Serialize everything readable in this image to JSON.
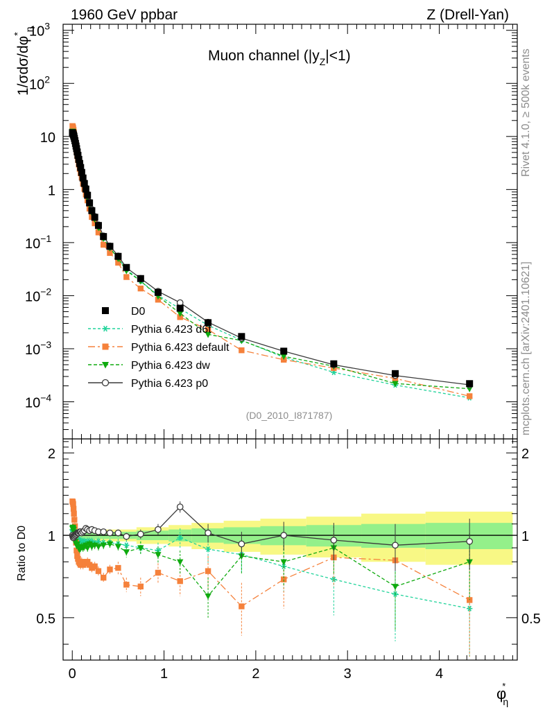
{
  "header": {
    "left": "1960 GeV ppbar",
    "right": "Z (Drell-Yan)"
  },
  "side": {
    "rivet": "Rivet 4.1.0, ≥ 500k events",
    "mcplots": "mcplots.cern.ch [arXiv:2401.10621]"
  },
  "chart_data": {
    "type": "scatter",
    "title": "Muon channel (|y_Z|<1)",
    "title_main": "Muon channel (|y",
    "title_sub": "Z",
    "title_tail": "|<1)",
    "analysis_id": "(D0_2010_I871787)",
    "xlabel": "φ*",
    "xlabel_main": "φ",
    "xlabel_sup": "*",
    "xlabel_sub": "η",
    "ylabel": "1/σdσ/dφ*η",
    "ylabel_main": "1/σdσ/dφ",
    "ylabel_sup": "*",
    "ylabel_sub": "η",
    "ratio_ylabel": "Ratio to D0",
    "xlim": [
      -0.1,
      4.85
    ],
    "ylim": [
      2e-05,
      1300
    ],
    "yscale": "log",
    "ratio_ylim": [
      0.35,
      2.25
    ],
    "xticks": [
      0,
      1,
      2,
      3,
      4
    ],
    "xtick_labels": [
      "0",
      "1",
      "2",
      "3",
      "4"
    ],
    "yticks": [
      0.0001,
      0.001,
      0.01,
      0.1,
      1,
      10,
      100,
      1000
    ],
    "ytick_labels": [
      {
        "t": "10",
        "e": "−4"
      },
      {
        "t": "10",
        "e": "−3"
      },
      {
        "t": "10",
        "e": "−2"
      },
      {
        "t": "10",
        "e": "−1"
      },
      {
        "t": "1",
        "e": ""
      },
      {
        "t": "10",
        "e": ""
      },
      {
        "t": "10",
        "e": "2"
      },
      {
        "t": "10",
        "e": "3"
      }
    ],
    "ratio_yticks": [
      0.5,
      1,
      2
    ],
    "ratio_ytick_labels": [
      "0.5",
      "1",
      "2"
    ],
    "x": [
      0.002,
      0.006,
      0.01,
      0.014,
      0.018,
      0.023,
      0.029,
      0.035,
      0.041,
      0.047,
      0.054,
      0.062,
      0.071,
      0.081,
      0.091,
      0.103,
      0.117,
      0.132,
      0.148,
      0.166,
      0.188,
      0.213,
      0.245,
      0.285,
      0.34,
      0.41,
      0.5,
      0.59,
      0.745,
      0.935,
      1.175,
      1.48,
      1.845,
      2.305,
      2.85,
      3.52,
      4.33
    ],
    "data": {
      "name": "D0",
      "values": [
        11.8,
        11.6,
        11.1,
        10.6,
        10.0,
        9.2,
        8.3,
        7.4,
        6.6,
        5.9,
        5.1,
        4.4,
        3.7,
        3.1,
        2.6,
        2.1,
        1.65,
        1.3,
        1.02,
        0.78,
        0.56,
        0.4,
        0.3,
        0.21,
        0.13,
        0.085,
        0.055,
        0.034,
        0.021,
        0.0115,
        0.0058,
        0.0031,
        0.0017,
        0.0009,
        0.00052,
        0.00034,
        0.00022
      ],
      "error": 0.03
    },
    "series": [
      {
        "name": "Pythia 6.423 d6t",
        "color": "#1fd39a",
        "marker": "star",
        "dash": "4,3",
        "ratio": [
          1.05,
          1.04,
          1.03,
          1.02,
          1.01,
          1.0,
          0.99,
          0.98,
          0.98,
          0.97,
          0.97,
          0.96,
          0.96,
          0.96,
          0.95,
          0.95,
          0.95,
          0.95,
          0.94,
          0.95,
          0.95,
          0.95,
          0.94,
          0.95,
          0.94,
          0.94,
          0.93,
          0.92,
          0.9,
          0.88,
          0.98,
          0.89,
          0.85,
          0.77,
          0.69,
          0.61,
          0.54
        ],
        "err": [
          0.03,
          0.03,
          0.03,
          0.03,
          0.03,
          0.03,
          0.03,
          0.03,
          0.03,
          0.03,
          0.03,
          0.03,
          0.03,
          0.03,
          0.03,
          0.03,
          0.03,
          0.03,
          0.03,
          0.03,
          0.03,
          0.03,
          0.03,
          0.03,
          0.03,
          0.03,
          0.04,
          0.04,
          0.05,
          0.06,
          0.08,
          0.1,
          0.12,
          0.15,
          0.18,
          0.2,
          0.22
        ]
      },
      {
        "name": "Pythia 6.423 default",
        "color": "#f5813b",
        "marker": "square",
        "dash": "10,4,3,4",
        "ratio": [
          1.33,
          1.32,
          1.3,
          1.25,
          1.2,
          1.14,
          1.08,
          1.0,
          0.94,
          0.88,
          0.84,
          0.82,
          0.8,
          0.79,
          0.78,
          0.8,
          0.78,
          0.79,
          0.79,
          0.8,
          0.78,
          0.76,
          0.77,
          0.74,
          0.7,
          0.75,
          0.76,
          0.66,
          0.65,
          0.73,
          0.68,
          0.74,
          0.55,
          0.69,
          0.83,
          0.81,
          0.58
        ],
        "err": [
          0.03,
          0.03,
          0.03,
          0.03,
          0.03,
          0.03,
          0.03,
          0.03,
          0.03,
          0.03,
          0.03,
          0.03,
          0.03,
          0.03,
          0.03,
          0.03,
          0.03,
          0.03,
          0.03,
          0.03,
          0.03,
          0.03,
          0.03,
          0.03,
          0.03,
          0.03,
          0.04,
          0.04,
          0.05,
          0.06,
          0.08,
          0.1,
          0.12,
          0.15,
          0.18,
          0.2,
          0.22
        ]
      },
      {
        "name": "Pythia 6.423 dw",
        "color": "#0faa0f",
        "marker": "tri-down",
        "dash": "5,3",
        "ratio": [
          1.06,
          1.07,
          1.06,
          1.05,
          1.03,
          1.0,
          0.98,
          0.95,
          0.93,
          0.92,
          0.93,
          0.91,
          0.9,
          0.89,
          0.9,
          0.91,
          0.9,
          0.91,
          0.92,
          0.9,
          0.93,
          0.91,
          0.92,
          0.91,
          0.92,
          0.93,
          0.91,
          0.87,
          0.9,
          0.85,
          0.8,
          0.6,
          0.84,
          0.8,
          0.9,
          0.65,
          0.8
        ],
        "err": [
          0.03,
          0.03,
          0.03,
          0.03,
          0.03,
          0.03,
          0.03,
          0.03,
          0.03,
          0.03,
          0.03,
          0.03,
          0.03,
          0.03,
          0.03,
          0.03,
          0.03,
          0.03,
          0.03,
          0.03,
          0.03,
          0.03,
          0.03,
          0.03,
          0.03,
          0.03,
          0.04,
          0.04,
          0.05,
          0.06,
          0.08,
          0.1,
          0.12,
          0.15,
          0.18,
          0.2,
          0.22
        ]
      },
      {
        "name": "Pythia 6.423 p0",
        "color": "#3a3a3a",
        "marker": "circle-open",
        "dash": "",
        "ratio": [
          1.0,
          0.99,
          0.98,
          0.98,
          0.99,
          0.99,
          1.0,
          1.0,
          1.01,
          1.01,
          1.02,
          1.02,
          1.02,
          1.03,
          1.03,
          1.02,
          1.03,
          1.04,
          1.06,
          1.05,
          1.04,
          1.05,
          1.04,
          1.03,
          1.03,
          1.02,
          1.02,
          0.99,
          1.01,
          1.05,
          1.27,
          1.02,
          0.93,
          1.0,
          0.96,
          0.92,
          0.95
        ],
        "err": [
          0.02,
          0.02,
          0.02,
          0.02,
          0.02,
          0.02,
          0.02,
          0.02,
          0.02,
          0.02,
          0.02,
          0.02,
          0.02,
          0.02,
          0.02,
          0.02,
          0.02,
          0.02,
          0.02,
          0.02,
          0.02,
          0.02,
          0.02,
          0.02,
          0.02,
          0.02,
          0.03,
          0.03,
          0.04,
          0.05,
          0.06,
          0.08,
          0.1,
          0.12,
          0.15,
          0.18,
          0.2
        ]
      }
    ],
    "uncertainty_bands": {
      "edges": [
        0,
        0.3,
        0.7,
        1.05,
        1.3,
        1.65,
        2.05,
        2.55,
        3.15,
        3.85,
        4.8
      ],
      "inner": [
        0.03,
        0.03,
        0.04,
        0.05,
        0.06,
        0.07,
        0.08,
        0.09,
        0.1,
        0.11,
        0.12
      ],
      "outer": [
        0.05,
        0.05,
        0.07,
        0.09,
        0.11,
        0.13,
        0.15,
        0.17,
        0.2,
        0.22,
        0.24
      ]
    },
    "colors": {
      "band_inner": "#94f08a",
      "band_outer": "#f8f885",
      "data": "#000000",
      "gray": "#8c8c8c"
    }
  }
}
